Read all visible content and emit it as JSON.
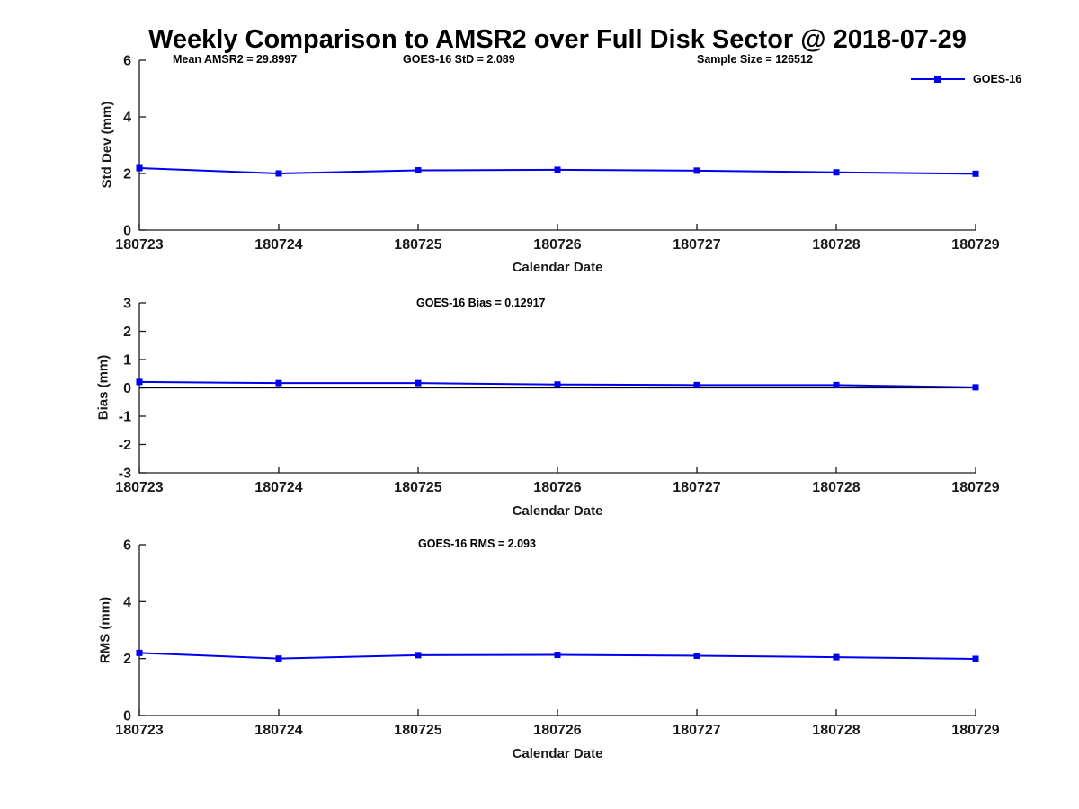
{
  "title": "Weekly Comparison to AMSR2 over Full Disk Sector @ 2018-07-29",
  "colors": {
    "line": "#0000EE",
    "axis": "#1a1a1a",
    "text": "#000000"
  },
  "legend": {
    "label": "GOES-16"
  },
  "chart_data": [
    {
      "type": "line",
      "categories": [
        "180723",
        "180724",
        "180725",
        "180726",
        "180727",
        "180728",
        "180729"
      ],
      "series": [
        {
          "name": "GOES-16",
          "color": "#0000EE",
          "marker": "square",
          "values": [
            2.19,
            2.0,
            2.11,
            2.13,
            2.1,
            2.04,
            1.99
          ]
        }
      ],
      "xlabel": "Calendar Date",
      "ylabel": "Std Dev (mm)",
      "ylim": [
        0,
        6
      ],
      "yticks": [
        0,
        2,
        4,
        6
      ],
      "grid": false,
      "zero_line": false,
      "legend_position": "top-right",
      "annotations": [
        {
          "text": "Mean AMSR2 = 29.8997"
        },
        {
          "text": "GOES-16 StD = 2.089"
        },
        {
          "text": "Sample Size = 126512"
        }
      ]
    },
    {
      "type": "line",
      "categories": [
        "180723",
        "180724",
        "180725",
        "180726",
        "180727",
        "180728",
        "180729"
      ],
      "series": [
        {
          "name": "GOES-16",
          "color": "#0000EE",
          "marker": "square",
          "values": [
            0.21,
            0.17,
            0.17,
            0.12,
            0.1,
            0.1,
            0.02
          ]
        }
      ],
      "xlabel": "Calendar Date",
      "ylabel": "Bias (mm)",
      "ylim": [
        -3,
        3
      ],
      "yticks": [
        3,
        2,
        1,
        0,
        -1,
        -2,
        -3
      ],
      "grid": false,
      "zero_line": true,
      "annotations": [
        {
          "text": "GOES-16 Bias  = 0.12917"
        }
      ]
    },
    {
      "type": "line",
      "categories": [
        "180723",
        "180724",
        "180725",
        "180726",
        "180727",
        "180728",
        "180729"
      ],
      "series": [
        {
          "name": "GOES-16",
          "color": "#0000EE",
          "marker": "square",
          "values": [
            2.2,
            2.0,
            2.12,
            2.13,
            2.1,
            2.05,
            1.99
          ]
        }
      ],
      "xlabel": "Calendar Date",
      "ylabel": "RMS (mm)",
      "ylim": [
        0,
        6
      ],
      "yticks": [
        0,
        2,
        4,
        6
      ],
      "grid": false,
      "zero_line": false,
      "annotations": [
        {
          "text": "GOES-16 RMS = 2.093"
        }
      ]
    }
  ]
}
